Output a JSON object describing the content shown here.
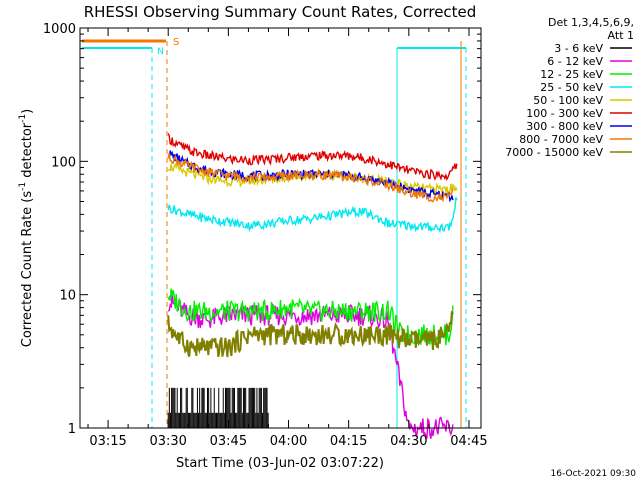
{
  "chart_data": {
    "type": "line",
    "title": "RHESSI Observing Summary Count Rates, Corrected",
    "xlabel": "Start Time (03-Jun-02 03:07:22)",
    "ylabel_main": "Corrected Count Rate (s",
    "ylabel_sup1": "-1",
    "ylabel_mid": " detector",
    "ylabel_sup2": "-1",
    "ylabel_end": ")",
    "yscale": "log",
    "ylim": [
      1,
      1000
    ],
    "xlim_minutes": [
      8,
      48
    ],
    "x_ticks": [
      {
        "t": 15,
        "label": "03:15"
      },
      {
        "t": 30,
        "label": "03:30"
      },
      {
        "t": 45,
        "label": "03:45"
      },
      {
        "t": 60,
        "label": "04:00"
      },
      {
        "t": 75,
        "label": "04:15"
      },
      {
        "t": 90,
        "label": "04:30"
      },
      {
        "t": 105,
        "label": "04:45"
      }
    ],
    "y_ticks": [
      {
        "v": 1,
        "label": "1"
      },
      {
        "v": 10,
        "label": "10"
      },
      {
        "v": 100,
        "label": "100"
      },
      {
        "v": 1000,
        "label": "1000"
      }
    ],
    "legend_header": [
      "Det 1,3,4,5,6,9,",
      "Att 1"
    ],
    "series": [
      {
        "name": "3 - 6 keV",
        "color": "#000000",
        "points": [
          [
            30,
            1
          ],
          [
            34,
            1
          ],
          [
            40,
            1
          ],
          [
            50,
            1
          ]
        ]
      },
      {
        "name": "6 - 12 keV",
        "color": "#e000e0",
        "points": [
          [
            30,
            9
          ],
          [
            35,
            7
          ],
          [
            40,
            6.5
          ],
          [
            45,
            7
          ],
          [
            50,
            7
          ],
          [
            55,
            7
          ],
          [
            60,
            7
          ],
          [
            65,
            7
          ],
          [
            70,
            7
          ],
          [
            75,
            7
          ],
          [
            80,
            7
          ],
          [
            84,
            6.5
          ],
          [
            85,
            6
          ],
          [
            90,
            1
          ],
          [
            101,
            1
          ]
        ]
      },
      {
        "name": "12 - 25 keV",
        "color": "#00ee00",
        "points": [
          [
            30,
            10
          ],
          [
            35,
            7.5
          ],
          [
            40,
            7.5
          ],
          [
            45,
            7.5
          ],
          [
            50,
            7.5
          ],
          [
            55,
            7.5
          ],
          [
            60,
            8
          ],
          [
            65,
            7.5
          ],
          [
            70,
            7.5
          ],
          [
            75,
            7.5
          ],
          [
            80,
            7.5
          ],
          [
            85,
            7.5
          ],
          [
            88,
            5
          ],
          [
            95,
            5
          ],
          [
            100,
            5
          ],
          [
            101,
            7
          ]
        ]
      },
      {
        "name": "25 - 50 keV",
        "color": "#00e8f0",
        "points": [
          [
            30,
            45
          ],
          [
            35,
            40
          ],
          [
            40,
            37
          ],
          [
            45,
            35
          ],
          [
            50,
            33
          ],
          [
            55,
            34
          ],
          [
            60,
            36
          ],
          [
            65,
            37
          ],
          [
            70,
            39
          ],
          [
            75,
            41
          ],
          [
            78,
            42
          ],
          [
            82,
            38
          ],
          [
            85,
            34
          ],
          [
            90,
            33
          ],
          [
            95,
            32
          ],
          [
            100,
            32
          ],
          [
            101,
            37
          ],
          [
            102,
            55
          ]
        ]
      },
      {
        "name": "50 - 100 keV",
        "color": "#d8c800",
        "points": [
          [
            30,
            92
          ],
          [
            35,
            82
          ],
          [
            40,
            74
          ],
          [
            45,
            71
          ],
          [
            50,
            71
          ],
          [
            55,
            73
          ],
          [
            60,
            76
          ],
          [
            65,
            78
          ],
          [
            70,
            79
          ],
          [
            75,
            77
          ],
          [
            80,
            74
          ],
          [
            85,
            70
          ],
          [
            90,
            65
          ],
          [
            95,
            62
          ],
          [
            100,
            62
          ],
          [
            102,
            65
          ]
        ]
      },
      {
        "name": "100 - 300 keV",
        "color": "#e00000",
        "points": [
          [
            30,
            150
          ],
          [
            33,
            130
          ],
          [
            36,
            118
          ],
          [
            40,
            110
          ],
          [
            45,
            104
          ],
          [
            50,
            102
          ],
          [
            55,
            103
          ],
          [
            60,
            107
          ],
          [
            65,
            110
          ],
          [
            70,
            111
          ],
          [
            75,
            110
          ],
          [
            80,
            104
          ],
          [
            85,
            95
          ],
          [
            90,
            85
          ],
          [
            95,
            80
          ],
          [
            100,
            78
          ],
          [
            102,
            95
          ]
        ]
      },
      {
        "name": "300 - 800 keV",
        "color": "#0000ee",
        "points": [
          [
            30,
            115
          ],
          [
            35,
            95
          ],
          [
            40,
            85
          ],
          [
            45,
            80
          ],
          [
            50,
            78
          ],
          [
            55,
            78
          ],
          [
            60,
            80
          ],
          [
            65,
            80
          ],
          [
            70,
            80
          ],
          [
            75,
            78
          ],
          [
            80,
            74
          ],
          [
            85,
            68
          ],
          [
            90,
            62
          ],
          [
            95,
            57
          ],
          [
            100,
            55
          ],
          [
            101,
            55
          ]
        ]
      },
      {
        "name": "800 - 7000 keV",
        "color": "#f07800",
        "points": [
          [
            30,
            108
          ],
          [
            35,
            92
          ],
          [
            40,
            83
          ],
          [
            45,
            78
          ],
          [
            50,
            76
          ],
          [
            55,
            76
          ],
          [
            60,
            78
          ],
          [
            65,
            79
          ],
          [
            70,
            79
          ],
          [
            75,
            76
          ],
          [
            80,
            72
          ],
          [
            85,
            66
          ],
          [
            90,
            58
          ],
          [
            95,
            54
          ],
          [
            100,
            53
          ],
          [
            101,
            60
          ]
        ]
      },
      {
        "name": "7000 - 15000 keV",
        "color": "#808000",
        "points": [
          [
            30,
            6
          ],
          [
            33,
            4.5
          ],
          [
            36,
            4
          ],
          [
            40,
            4
          ],
          [
            45,
            4
          ],
          [
            50,
            5
          ],
          [
            55,
            5
          ],
          [
            60,
            5
          ],
          [
            65,
            5
          ],
          [
            70,
            5
          ],
          [
            75,
            5
          ],
          [
            80,
            5
          ],
          [
            85,
            5
          ],
          [
            90,
            4.5
          ],
          [
            95,
            4.5
          ],
          [
            100,
            5
          ],
          [
            101,
            7
          ]
        ]
      }
    ],
    "annotations": [
      {
        "label": "N",
        "color": "#00e8f0"
      },
      {
        "label": "S",
        "color": "#f07800"
      }
    ],
    "footer_date": "16-Oct-2021 09:30"
  }
}
